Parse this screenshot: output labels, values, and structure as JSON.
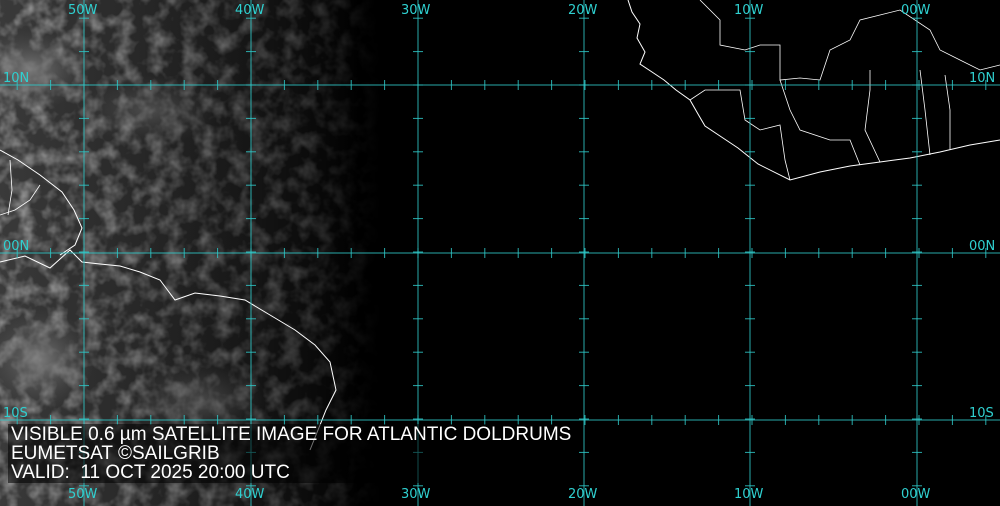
{
  "caption": {
    "line1": "VISIBLE 0.6 µm SATELLITE IMAGE FOR ATLANTIC DOLDRUMS",
    "line2": "EUMETSAT ©SAILGRIB",
    "line3": "VALID:  11 OCT 2025 20:00 UTC"
  },
  "longitudes": [
    "50W",
    "40W",
    "30W",
    "20W",
    "10W",
    "00W"
  ],
  "latitudes": [
    "10N",
    "00N",
    "10S"
  ],
  "colors": {
    "grid": "#2fc8c8",
    "coast": "#ffffff",
    "background": "#000000"
  }
}
